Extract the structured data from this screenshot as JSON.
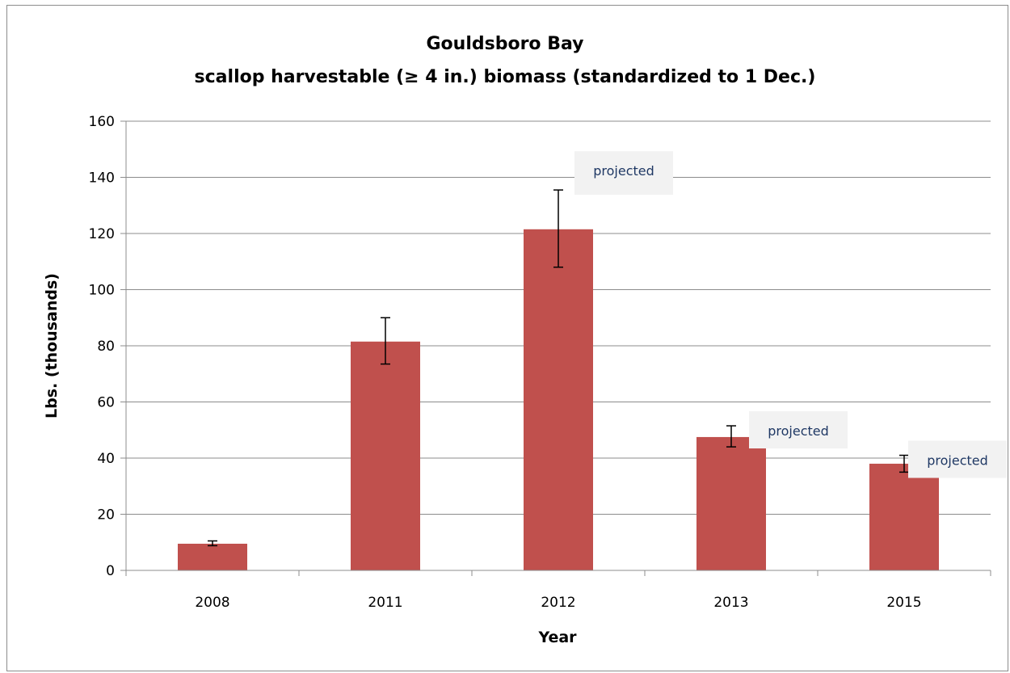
{
  "chart_data": {
    "type": "bar",
    "title": "Gouldsboro Bay",
    "subtitle_parts": [
      "scallop harvestable (",
      "≥",
      " 4 in.) biomass (standardized to 1 Dec.)"
    ],
    "xlabel": "Year",
    "ylabel": "Lbs. (thousands)",
    "categories": [
      "2008",
      "2011",
      "2012",
      "2013",
      "2015"
    ],
    "values": [
      9.5,
      81.5,
      121.5,
      47.5,
      38
    ],
    "error_low": [
      8.8,
      73.5,
      108,
      44,
      35
    ],
    "error_high": [
      10.5,
      90,
      135.5,
      51.5,
      41
    ],
    "ylim": [
      0,
      160
    ],
    "yticks": [
      "0",
      "20",
      "40",
      "60",
      "80",
      "100",
      "120",
      "140",
      "160"
    ],
    "grid": true,
    "bar_color": "#c0504d",
    "grid_color": "#8c8c8c",
    "annotations": [
      {
        "text": "projected",
        "category": "2012"
      },
      {
        "text": "projected",
        "category": "2013"
      },
      {
        "text": "projected",
        "category": "2015"
      }
    ],
    "annotation_bg": "#f2f2f2",
    "annotation_color": "#1f3864"
  }
}
